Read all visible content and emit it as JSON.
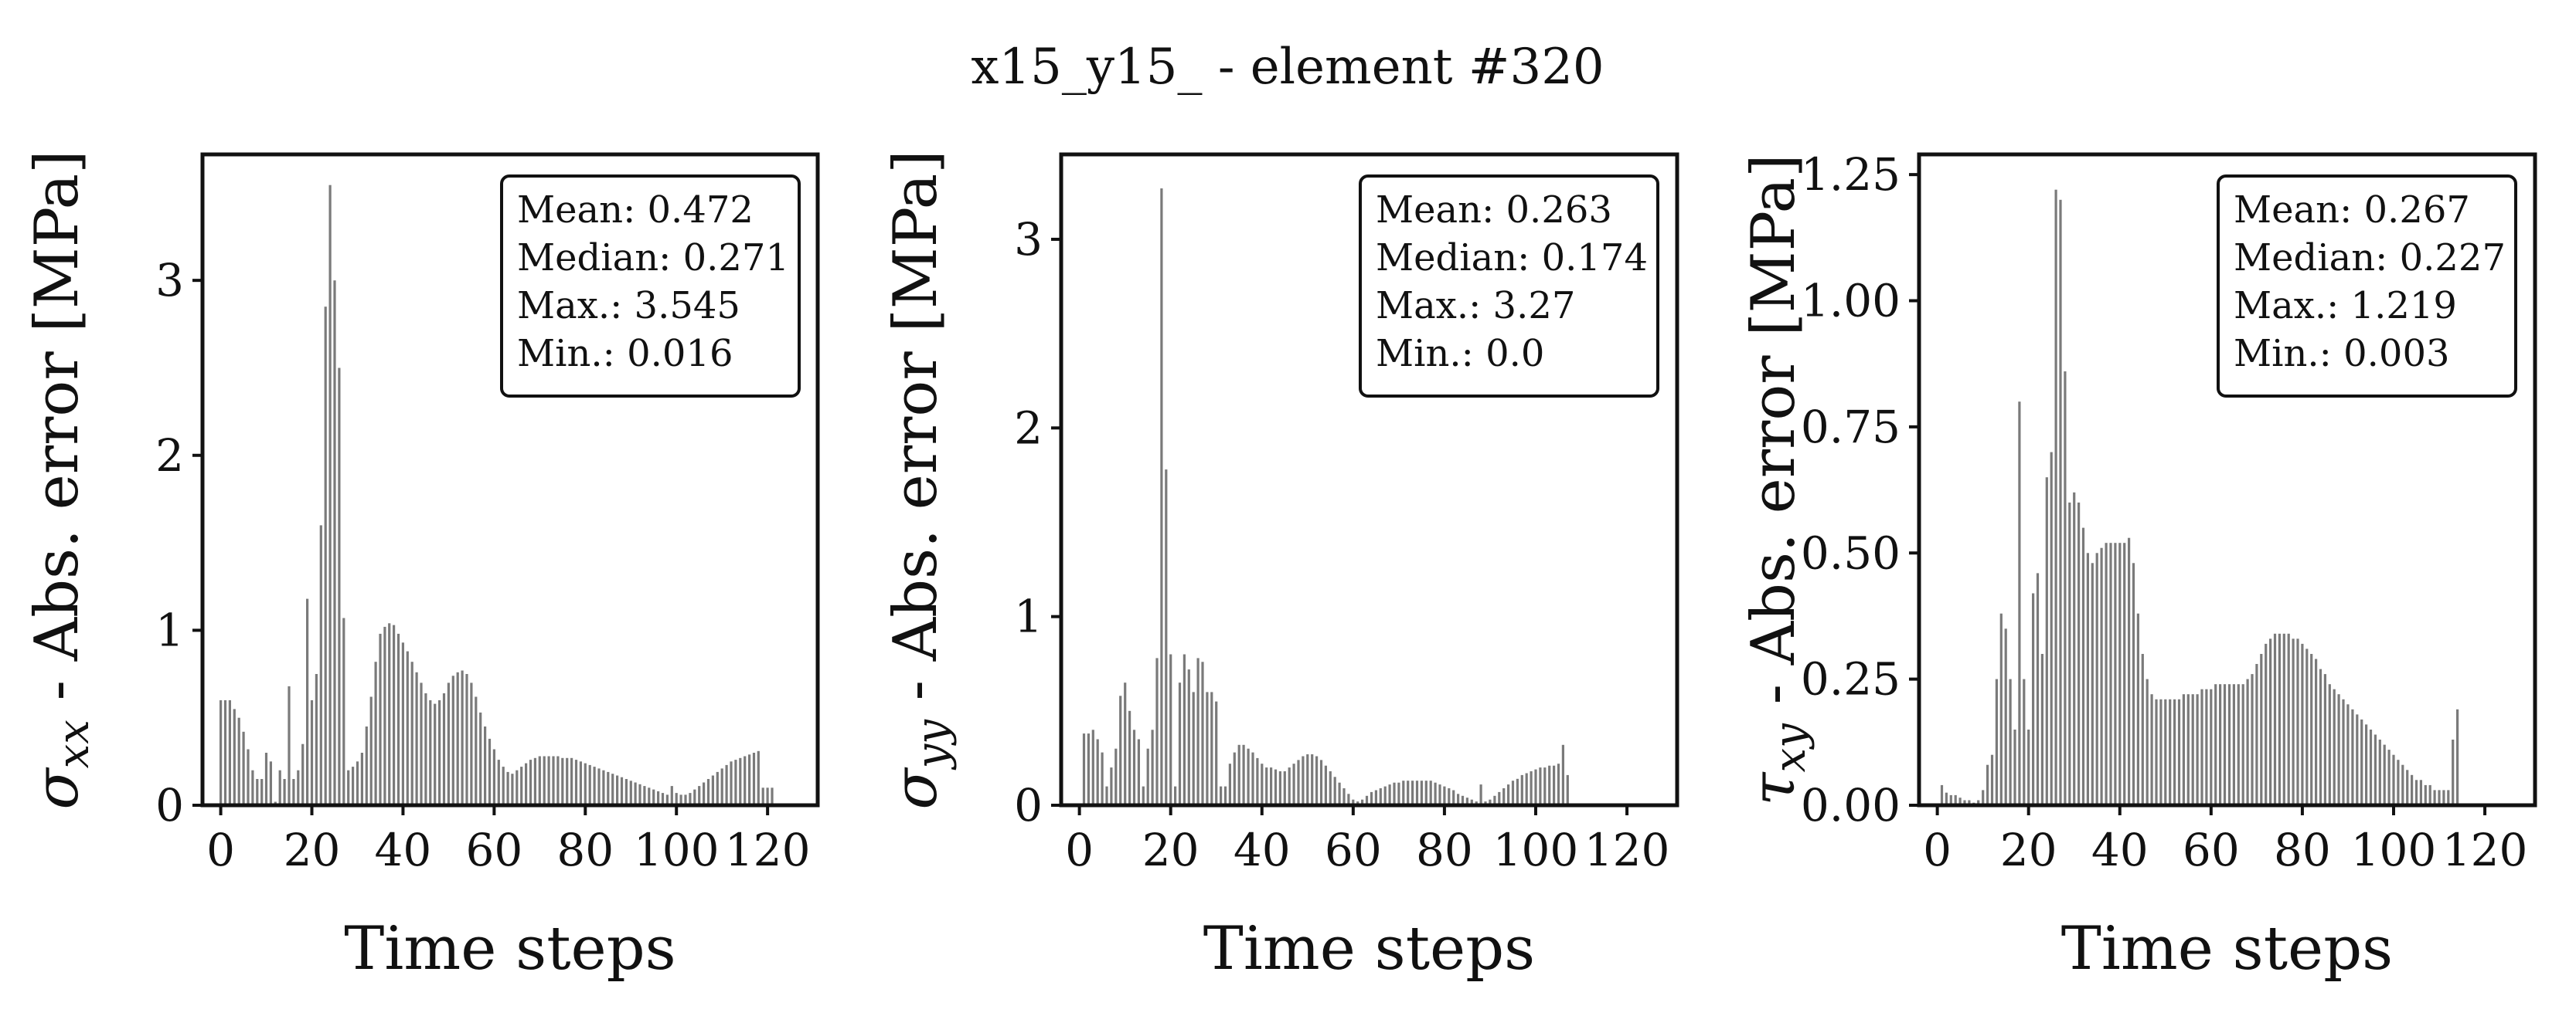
{
  "title": "x15_y15_ - element #320",
  "chart_data": [
    {
      "type": "bar",
      "xlabel": "Time steps",
      "ylabel": {
        "sym": "σ",
        "sub": "xx",
        "rest": " - Abs. error [MPa]"
      },
      "xlim": [
        -4,
        131
      ],
      "ylim": [
        0,
        3.72
      ],
      "xticks": [
        0,
        20,
        40,
        60,
        80,
        100,
        120
      ],
      "yticks": [
        0,
        1,
        2,
        3
      ],
      "yticklabels": [
        "0",
        "1",
        "2",
        "3"
      ],
      "stats": [
        "Mean: 0.472",
        "Median: 0.271",
        "Max.: 3.545",
        "Min.: 0.016"
      ],
      "x_start": 0,
      "values": [
        0.6,
        0.6,
        0.6,
        0.55,
        0.5,
        0.42,
        0.32,
        0.2,
        0.15,
        0.15,
        0.3,
        0.25,
        0.02,
        0.2,
        0.15,
        0.68,
        0.15,
        0.2,
        0.35,
        1.18,
        0.6,
        0.75,
        1.6,
        2.85,
        3.545,
        3.0,
        2.5,
        1.07,
        0.2,
        0.22,
        0.25,
        0.3,
        0.45,
        0.62,
        0.82,
        0.98,
        1.02,
        1.04,
        1.03,
        0.98,
        0.93,
        0.88,
        0.82,
        0.76,
        0.7,
        0.64,
        0.6,
        0.58,
        0.6,
        0.64,
        0.7,
        0.74,
        0.76,
        0.77,
        0.75,
        0.7,
        0.62,
        0.53,
        0.45,
        0.38,
        0.32,
        0.26,
        0.22,
        0.19,
        0.18,
        0.2,
        0.22,
        0.24,
        0.26,
        0.27,
        0.28,
        0.28,
        0.28,
        0.28,
        0.28,
        0.27,
        0.27,
        0.27,
        0.26,
        0.25,
        0.24,
        0.23,
        0.22,
        0.21,
        0.2,
        0.19,
        0.18,
        0.17,
        0.16,
        0.15,
        0.14,
        0.13,
        0.12,
        0.11,
        0.1,
        0.09,
        0.08,
        0.07,
        0.06,
        0.11,
        0.07,
        0.06,
        0.06,
        0.07,
        0.09,
        0.11,
        0.13,
        0.15,
        0.17,
        0.19,
        0.21,
        0.23,
        0.25,
        0.26,
        0.27,
        0.28,
        0.29,
        0.3,
        0.31,
        0.1,
        0.1,
        0.1
      ]
    },
    {
      "type": "bar",
      "xlabel": "Time steps",
      "ylabel": {
        "sym": "σ",
        "sub": "yy",
        "rest": " - Abs. error [MPa]"
      },
      "xlim": [
        -4,
        131
      ],
      "ylim": [
        0,
        3.45
      ],
      "xticks": [
        0,
        20,
        40,
        60,
        80,
        100,
        120
      ],
      "yticks": [
        0,
        1,
        2,
        3
      ],
      "yticklabels": [
        "0",
        "1",
        "2",
        "3"
      ],
      "stats": [
        "Mean: 0.263",
        "Median: 0.174",
        "Max.: 3.27",
        "Min.: 0.0"
      ],
      "x_start": 1,
      "values": [
        0.38,
        0.38,
        0.4,
        0.35,
        0.28,
        0.1,
        0.2,
        0.3,
        0.58,
        0.65,
        0.5,
        0.4,
        0.35,
        0.1,
        0.3,
        0.4,
        0.78,
        3.27,
        1.78,
        0.8,
        0.1,
        0.65,
        0.8,
        0.72,
        0.6,
        0.78,
        0.76,
        0.6,
        0.6,
        0.55,
        0.1,
        0.1,
        0.22,
        0.28,
        0.32,
        0.32,
        0.3,
        0.28,
        0.25,
        0.22,
        0.2,
        0.2,
        0.19,
        0.18,
        0.18,
        0.2,
        0.22,
        0.24,
        0.26,
        0.27,
        0.27,
        0.26,
        0.24,
        0.21,
        0.18,
        0.15,
        0.12,
        0.09,
        0.06,
        0.03,
        0.02,
        0.03,
        0.05,
        0.07,
        0.08,
        0.09,
        0.1,
        0.11,
        0.12,
        0.12,
        0.13,
        0.13,
        0.13,
        0.13,
        0.13,
        0.13,
        0.13,
        0.12,
        0.11,
        0.1,
        0.09,
        0.08,
        0.06,
        0.05,
        0.04,
        0.03,
        0.02,
        0.11,
        0.02,
        0.03,
        0.05,
        0.07,
        0.09,
        0.11,
        0.13,
        0.14,
        0.16,
        0.17,
        0.18,
        0.19,
        0.2,
        0.2,
        0.21,
        0.21,
        0.22,
        0.32,
        0.16
      ]
    },
    {
      "type": "bar",
      "xlabel": "Time steps",
      "ylabel": {
        "sym": "τ",
        "sub": "xy",
        "rest": " - Abs. error [MPa]"
      },
      "xlim": [
        -4,
        131
      ],
      "ylim": [
        0,
        1.29
      ],
      "xticks": [
        0,
        20,
        40,
        60,
        80,
        100,
        120
      ],
      "yticks": [
        0,
        0.25,
        0.5,
        0.75,
        1.0,
        1.25
      ],
      "yticklabels": [
        "0.00",
        "0.25",
        "0.50",
        "0.75",
        "1.00",
        "1.25"
      ],
      "stats": [
        "Mean: 0.267",
        "Median: 0.227",
        "Max.: 1.219",
        "Min.: 0.003"
      ],
      "x_start": 0,
      "values": [
        0.003,
        0.04,
        0.025,
        0.02,
        0.02,
        0.015,
        0.01,
        0.01,
        0.005,
        0.01,
        0.03,
        0.08,
        0.1,
        0.25,
        0.38,
        0.35,
        0.25,
        0.15,
        0.8,
        0.25,
        0.15,
        0.42,
        0.46,
        0.3,
        0.65,
        0.7,
        1.22,
        1.2,
        0.86,
        0.6,
        0.62,
        0.6,
        0.55,
        0.5,
        0.48,
        0.5,
        0.51,
        0.52,
        0.52,
        0.52,
        0.52,
        0.52,
        0.53,
        0.48,
        0.38,
        0.3,
        0.25,
        0.22,
        0.21,
        0.21,
        0.21,
        0.21,
        0.21,
        0.21,
        0.22,
        0.22,
        0.22,
        0.22,
        0.23,
        0.23,
        0.23,
        0.24,
        0.24,
        0.24,
        0.24,
        0.24,
        0.24,
        0.24,
        0.25,
        0.26,
        0.28,
        0.3,
        0.32,
        0.33,
        0.34,
        0.34,
        0.34,
        0.34,
        0.33,
        0.33,
        0.32,
        0.31,
        0.3,
        0.29,
        0.27,
        0.26,
        0.24,
        0.23,
        0.22,
        0.21,
        0.2,
        0.19,
        0.18,
        0.17,
        0.16,
        0.15,
        0.14,
        0.13,
        0.12,
        0.11,
        0.1,
        0.09,
        0.08,
        0.07,
        0.06,
        0.05,
        0.05,
        0.04,
        0.04,
        0.03,
        0.03,
        0.03,
        0.03,
        0.13,
        0.19
      ]
    }
  ]
}
